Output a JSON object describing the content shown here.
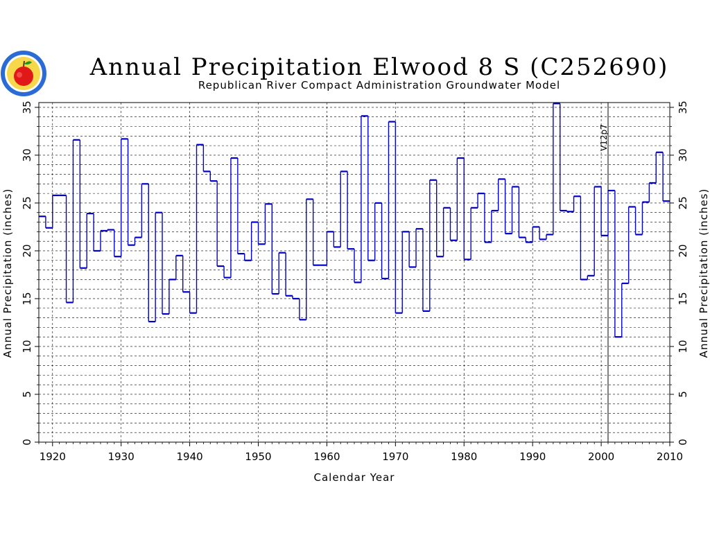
{
  "title": "Annual Precipitation Elwood 8 S (C252690)",
  "subtitle": "Republican River Compact Administration Groundwater Model",
  "logo": {
    "icon": "apple-seal-logo",
    "colors": {
      "ring": "#2a6bd6",
      "apple": "#e01818",
      "leaf": "#1a9a1a",
      "bg": "#f6d84a"
    }
  },
  "colors": {
    "series": "#0000cc",
    "grid": "#000000",
    "axis": "#000000",
    "marker": "#000000"
  },
  "chart_data": {
    "type": "line",
    "style": "step",
    "title": "Annual Precipitation Elwood 8 S (C252690)",
    "subtitle": "Republican River Compact Administration Groundwater Model",
    "xlabel": "Calendar Year",
    "ylabel": "Annual Precipitation (inches)",
    "ylabel_right": "Annual Precipitation (inches)",
    "xlim": [
      1918,
      2010
    ],
    "ylim": [
      0,
      35.5
    ],
    "x_ticks": [
      1920,
      1930,
      1940,
      1950,
      1960,
      1970,
      1980,
      1990,
      2000,
      2010
    ],
    "x_tick_labels": [
      "1920",
      "1930",
      "1940",
      "1950",
      "1960",
      "1970",
      "1980",
      "1990",
      "2000",
      "2010"
    ],
    "y_ticks": [
      0,
      5,
      10,
      15,
      20,
      25,
      30,
      35
    ],
    "y_tick_labels": [
      "0",
      "5",
      "10",
      "15",
      "20",
      "25",
      "30",
      "35"
    ],
    "grid": "dashed horizontal every 1 inch, dashed vertical every 10 years",
    "annotations": [
      {
        "x": 2001,
        "label": "V12p7",
        "type": "vertical-line"
      }
    ],
    "series": [
      {
        "x": [
          1918,
          1919,
          1920,
          1921,
          1922,
          1923,
          1924,
          1925,
          1926,
          1927,
          1928,
          1929,
          1930,
          1931,
          1932,
          1933,
          1934,
          1935,
          1936,
          1937,
          1938,
          1939,
          1940,
          1941,
          1942,
          1943,
          1944,
          1945,
          1946,
          1947,
          1948,
          1949,
          1950,
          1951,
          1952,
          1953,
          1954,
          1955,
          1956,
          1957,
          1958,
          1959,
          1960,
          1961,
          1962,
          1963,
          1964,
          1965,
          1966,
          1967,
          1968,
          1969,
          1970,
          1971,
          1972,
          1973,
          1974,
          1975,
          1976,
          1977,
          1978,
          1979,
          1980,
          1981,
          1982,
          1983,
          1984,
          1985,
          1986,
          1987,
          1988,
          1989,
          1990,
          1991,
          1992,
          1993,
          1994,
          1995,
          1996,
          1997,
          1998,
          1999,
          2000,
          2001,
          2002,
          2003,
          2004,
          2005,
          2006,
          2007,
          2008,
          2009
        ],
        "values": [
          23.6,
          22.4,
          25.8,
          25.8,
          14.6,
          31.6,
          18.2,
          23.9,
          20.0,
          22.1,
          22.2,
          19.4,
          31.7,
          20.6,
          21.4,
          27.0,
          12.6,
          24.0,
          13.4,
          17.0,
          19.5,
          15.7,
          13.5,
          31.1,
          28.3,
          27.3,
          18.4,
          17.2,
          29.7,
          19.7,
          19.0,
          23.0,
          20.7,
          24.9,
          15.5,
          19.8,
          15.3,
          15.0,
          12.8,
          25.4,
          18.5,
          18.5,
          22.0,
          20.4,
          28.3,
          20.2,
          16.7,
          34.1,
          19.0,
          25.0,
          17.1,
          33.5,
          13.5,
          22.0,
          18.3,
          22.3,
          13.7,
          27.4,
          19.4,
          24.5,
          21.1,
          29.7,
          19.1,
          24.5,
          26.0,
          20.9,
          24.2,
          27.5,
          21.8,
          26.7,
          21.4,
          20.9,
          22.5,
          21.2,
          21.7,
          35.4,
          24.2,
          24.1,
          25.7,
          17.0,
          17.4,
          26.7,
          21.6,
          26.3,
          11.0,
          16.6,
          24.6,
          21.7,
          25.1,
          27.1,
          30.3,
          25.2
        ]
      }
    ]
  }
}
